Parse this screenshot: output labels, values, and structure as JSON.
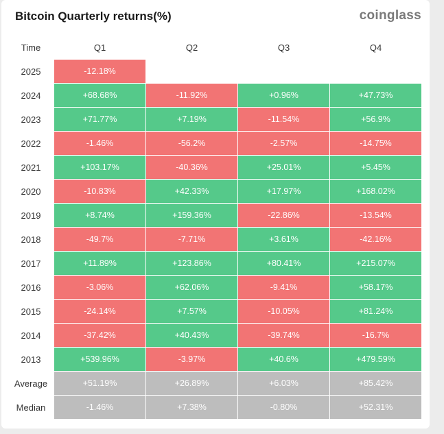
{
  "header": {
    "title": "Bitcoin Quarterly returns(%)",
    "brand": "coinglass"
  },
  "colors": {
    "positive": "#55c98a",
    "negative": "#f27474",
    "summary": "#bdbdbd"
  },
  "chart_data": {
    "type": "table",
    "title": "Bitcoin Quarterly returns(%)",
    "columns": [
      "Time",
      "Q1",
      "Q2",
      "Q3",
      "Q4"
    ],
    "rows": [
      {
        "label": "2025",
        "values": [
          "-12.18%",
          "",
          "",
          ""
        ]
      },
      {
        "label": "2024",
        "values": [
          "+68.68%",
          "-11.92%",
          "+0.96%",
          "+47.73%"
        ]
      },
      {
        "label": "2023",
        "values": [
          "+71.77%",
          "+7.19%",
          "-11.54%",
          "+56.9%"
        ]
      },
      {
        "label": "2022",
        "values": [
          "-1.46%",
          "-56.2%",
          "-2.57%",
          "-14.75%"
        ]
      },
      {
        "label": "2021",
        "values": [
          "+103.17%",
          "-40.36%",
          "+25.01%",
          "+5.45%"
        ]
      },
      {
        "label": "2020",
        "values": [
          "-10.83%",
          "+42.33%",
          "+17.97%",
          "+168.02%"
        ]
      },
      {
        "label": "2019",
        "values": [
          "+8.74%",
          "+159.36%",
          "-22.86%",
          "-13.54%"
        ]
      },
      {
        "label": "2018",
        "values": [
          "-49.7%",
          "-7.71%",
          "+3.61%",
          "-42.16%"
        ]
      },
      {
        "label": "2017",
        "values": [
          "+11.89%",
          "+123.86%",
          "+80.41%",
          "+215.07%"
        ]
      },
      {
        "label": "2016",
        "values": [
          "-3.06%",
          "+62.06%",
          "-9.41%",
          "+58.17%"
        ]
      },
      {
        "label": "2015",
        "values": [
          "-24.14%",
          "+7.57%",
          "-10.05%",
          "+81.24%"
        ]
      },
      {
        "label": "2014",
        "values": [
          "-37.42%",
          "+40.43%",
          "-39.74%",
          "-16.7%"
        ]
      },
      {
        "label": "2013",
        "values": [
          "+539.96%",
          "-3.97%",
          "+40.6%",
          "+479.59%"
        ]
      }
    ],
    "summary": [
      {
        "label": "Average",
        "values": [
          "+51.19%",
          "+26.89%",
          "+6.03%",
          "+85.42%"
        ]
      },
      {
        "label": "Median",
        "values": [
          "-1.46%",
          "+7.38%",
          "-0.80%",
          "+52.31%"
        ]
      }
    ]
  }
}
